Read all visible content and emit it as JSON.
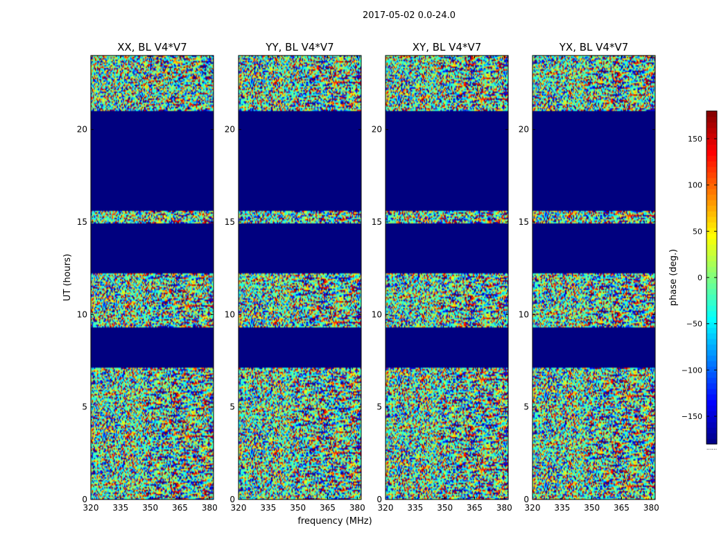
{
  "chart_data": {
    "type": "heatmap",
    "title": "2017-05-02 0.0-24.0",
    "xlabel": "frequency (MHz)",
    "ylabel": "UT (hours)",
    "xlim": [
      320,
      382
    ],
    "ylim": [
      0,
      24
    ],
    "xticks": [
      320,
      335,
      350,
      365,
      380
    ],
    "yticks": [
      0,
      5,
      10,
      15,
      20
    ],
    "panels": [
      {
        "title": "XX, BL V4*V7"
      },
      {
        "title": "YY, BL V4*V7"
      },
      {
        "title": "XY, BL V4*V7"
      },
      {
        "title": "YX, BL V4*V7"
      }
    ],
    "flagged_ranges_hours": [
      [
        7.1,
        9.3
      ],
      [
        12.2,
        14.9
      ],
      [
        15.6,
        21.0
      ]
    ],
    "colorbar": {
      "label": "phase (deg.)",
      "range": [
        -180,
        180
      ],
      "ticks": [
        "150",
        "100",
        "50",
        "0",
        "−50",
        "−100",
        "−150"
      ],
      "tick_values": [
        150,
        100,
        50,
        0,
        -50,
        -100,
        -150
      ],
      "footer": "......"
    },
    "colormap": [
      "#00007f",
      "#0000ff",
      "#007fff",
      "#00ffff",
      "#7fff7f",
      "#ffff00",
      "#ff7f00",
      "#ff0000",
      "#7f0000"
    ],
    "flag_color": "#00007f"
  }
}
